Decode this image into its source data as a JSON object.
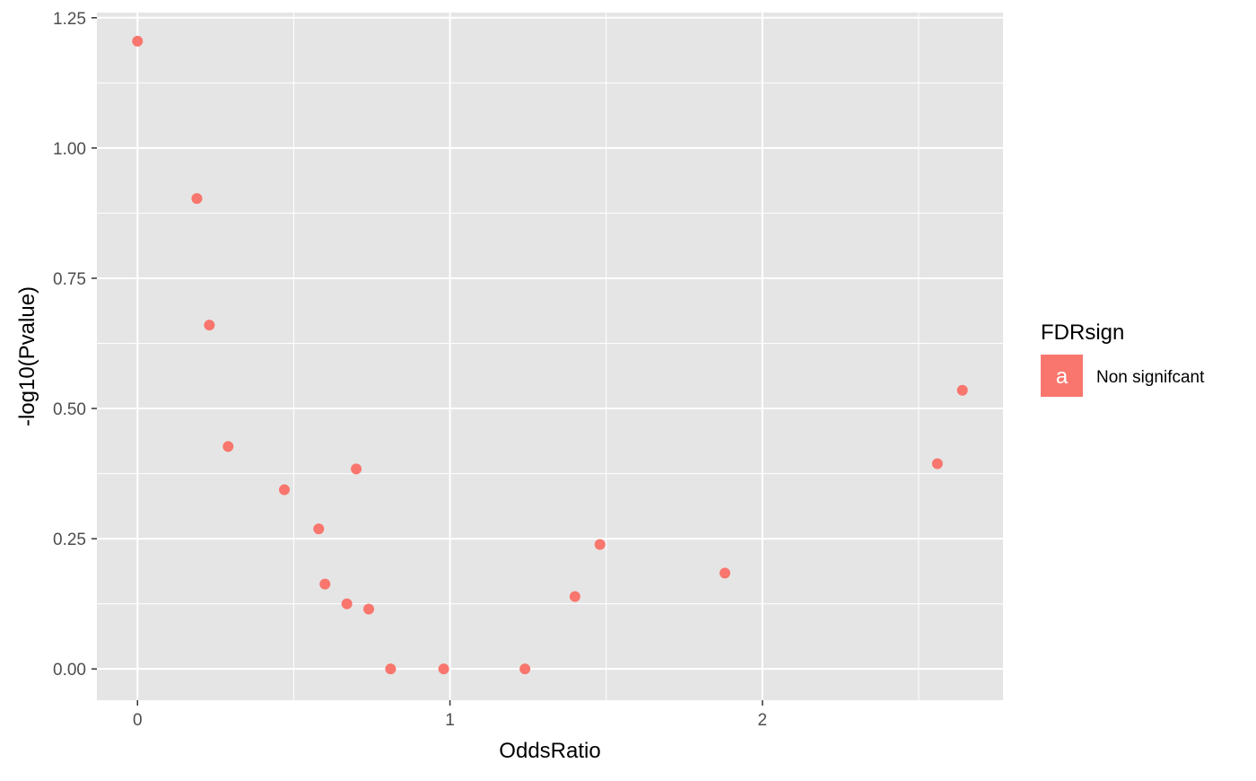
{
  "chart_data": {
    "type": "scatter",
    "title": "",
    "xlabel": "OddsRatio",
    "ylabel": "-log10(Pvalue)",
    "xlim": [
      -0.13,
      2.77
    ],
    "ylim": [
      -0.06,
      1.26
    ],
    "x_ticks": [
      0,
      1,
      2
    ],
    "x_tick_labels": [
      "0",
      "1",
      "2"
    ],
    "x_minor_ticks": [
      0.5,
      1.5,
      2.5
    ],
    "y_ticks": [
      0,
      0.25,
      0.5,
      0.75,
      1.0,
      1.25
    ],
    "y_tick_labels": [
      "0.00",
      "0.25",
      "0.50",
      "0.75",
      "1.00",
      "1.25"
    ],
    "y_minor_ticks": [
      0.125,
      0.375,
      0.625,
      0.875,
      1.125
    ],
    "grid": true,
    "panel_background": "#e5e5e5",
    "legend": {
      "title": "FDRsign",
      "position": "right",
      "key_glyph": "a",
      "entries": [
        {
          "label": "Non signifcant",
          "color": "#f8766d"
        }
      ]
    },
    "series": [
      {
        "name": "Non signifcant",
        "color": "#f8766d",
        "points": [
          {
            "x": 0.0,
            "y": 1.205
          },
          {
            "x": 0.19,
            "y": 0.903
          },
          {
            "x": 0.23,
            "y": 0.66
          },
          {
            "x": 0.29,
            "y": 0.427
          },
          {
            "x": 0.47,
            "y": 0.344
          },
          {
            "x": 0.58,
            "y": 0.269
          },
          {
            "x": 0.6,
            "y": 0.163
          },
          {
            "x": 0.67,
            "y": 0.125
          },
          {
            "x": 0.7,
            "y": 0.384
          },
          {
            "x": 0.74,
            "y": 0.115
          },
          {
            "x": 0.81,
            "y": 0.0
          },
          {
            "x": 0.98,
            "y": 0.0
          },
          {
            "x": 1.24,
            "y": 0.0
          },
          {
            "x": 1.4,
            "y": 0.139
          },
          {
            "x": 1.48,
            "y": 0.239
          },
          {
            "x": 1.88,
            "y": 0.184
          },
          {
            "x": 2.56,
            "y": 0.394
          },
          {
            "x": 2.64,
            "y": 0.535
          }
        ]
      }
    ]
  }
}
